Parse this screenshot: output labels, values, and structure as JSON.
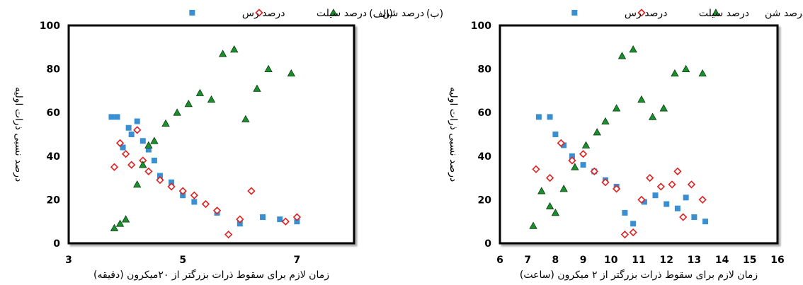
{
  "chart_data": [
    {
      "type": "scatter",
      "panel_label": "(الف)",
      "xlabel": "زمان لازم برای سقوط ذرات بزرگتر از ۲۰میکرون (دقیقه)",
      "ylabel": "درصد نسبی ذرات اولیه",
      "xlim": [
        3,
        8
      ],
      "ylim": [
        0,
        100
      ],
      "x_ticks": [
        "3",
        "5",
        "7"
      ],
      "x_tick_values": [
        3,
        5,
        7
      ],
      "y_ticks": [
        "0",
        "20",
        "40",
        "60",
        "80",
        "100"
      ],
      "y_tick_values": [
        0,
        20,
        40,
        60,
        80,
        100
      ],
      "grid": false,
      "legend_position": "top",
      "series": [
        {
          "name": "درصد رس",
          "color": "#3a8fd1",
          "marker": "square",
          "points": [
            [
              3.75,
              58
            ],
            [
              3.85,
              58
            ],
            [
              3.95,
              44
            ],
            [
              4.05,
              53
            ],
            [
              4.1,
              50
            ],
            [
              4.2,
              56
            ],
            [
              4.3,
              47
            ],
            [
              4.4,
              43
            ],
            [
              4.5,
              38
            ],
            [
              4.6,
              31
            ],
            [
              4.8,
              28
            ],
            [
              5.0,
              22
            ],
            [
              5.2,
              19
            ],
            [
              5.6,
              14
            ],
            [
              6.0,
              9
            ],
            [
              6.4,
              12
            ],
            [
              6.7,
              11
            ],
            [
              7.0,
              10
            ]
          ]
        },
        {
          "name": "درصد سیلت",
          "color": "#e02020",
          "marker": "diamond",
          "points": [
            [
              3.8,
              35
            ],
            [
              3.9,
              46
            ],
            [
              4.0,
              41
            ],
            [
              4.1,
              36
            ],
            [
              4.2,
              52
            ],
            [
              4.3,
              38
            ],
            [
              4.4,
              33
            ],
            [
              4.6,
              29
            ],
            [
              4.8,
              26
            ],
            [
              5.0,
              24
            ],
            [
              5.2,
              22
            ],
            [
              5.4,
              18
            ],
            [
              5.6,
              15
            ],
            [
              5.8,
              4
            ],
            [
              6.0,
              11
            ],
            [
              6.2,
              24
            ],
            [
              6.8,
              10
            ],
            [
              7.0,
              12
            ]
          ]
        },
        {
          "name": "درصد شن",
          "color": "#1b8f2e",
          "marker": "triangle",
          "points": [
            [
              3.8,
              7
            ],
            [
              3.9,
              9
            ],
            [
              4.0,
              11
            ],
            [
              4.2,
              27
            ],
            [
              4.3,
              36
            ],
            [
              4.4,
              45
            ],
            [
              4.5,
              47
            ],
            [
              4.7,
              55
            ],
            [
              4.9,
              60
            ],
            [
              5.1,
              64
            ],
            [
              5.3,
              69
            ],
            [
              5.5,
              66
            ],
            [
              5.7,
              87
            ],
            [
              5.9,
              89
            ],
            [
              6.1,
              57
            ],
            [
              6.3,
              71
            ],
            [
              6.5,
              80
            ],
            [
              6.9,
              78
            ]
          ]
        }
      ]
    },
    {
      "type": "scatter",
      "panel_label": "(ب)",
      "xlabel": "زمان لازم برای سقوط ذرات بزرگتر از ۲ میکرون (ساعت)",
      "ylabel": "درصد نسبی ذرات اولیه",
      "xlim": [
        6,
        16
      ],
      "ylim": [
        0,
        100
      ],
      "x_ticks": [
        "6",
        "7",
        "8",
        "9",
        "10",
        "11",
        "12",
        "13",
        "14",
        "15",
        "16"
      ],
      "x_tick_values": [
        6,
        7,
        8,
        9,
        10,
        11,
        12,
        13,
        14,
        15,
        16
      ],
      "y_ticks": [
        "0",
        "20",
        "40",
        "60",
        "80",
        "100"
      ],
      "y_tick_values": [
        0,
        20,
        40,
        60,
        80,
        100
      ],
      "grid": false,
      "legend_position": "top",
      "series": [
        {
          "name": "درصد رس",
          "color": "#3a8fd1",
          "marker": "square",
          "points": [
            [
              7.4,
              58
            ],
            [
              7.8,
              58
            ],
            [
              8.0,
              50
            ],
            [
              8.3,
              45
            ],
            [
              8.6,
              40
            ],
            [
              9.0,
              36
            ],
            [
              9.4,
              33
            ],
            [
              9.8,
              29
            ],
            [
              10.2,
              26
            ],
            [
              10.5,
              14
            ],
            [
              10.8,
              9
            ],
            [
              11.2,
              19
            ],
            [
              11.6,
              22
            ],
            [
              12.0,
              18
            ],
            [
              12.4,
              16
            ],
            [
              12.7,
              21
            ],
            [
              13.0,
              12
            ],
            [
              13.4,
              10
            ]
          ]
        },
        {
          "name": "درصد سیلت",
          "color": "#e02020",
          "marker": "diamond",
          "points": [
            [
              7.3,
              34
            ],
            [
              7.8,
              30
            ],
            [
              8.2,
              46
            ],
            [
              8.6,
              38
            ],
            [
              9.0,
              41
            ],
            [
              9.4,
              33
            ],
            [
              9.8,
              28
            ],
            [
              10.2,
              25
            ],
            [
              10.5,
              4
            ],
            [
              10.8,
              5
            ],
            [
              11.1,
              20
            ],
            [
              11.4,
              30
            ],
            [
              11.8,
              26
            ],
            [
              12.2,
              27
            ],
            [
              12.4,
              33
            ],
            [
              12.6,
              12
            ],
            [
              12.9,
              27
            ],
            [
              13.3,
              20
            ]
          ]
        },
        {
          "name": "درصد شن",
          "color": "#1b8f2e",
          "marker": "triangle",
          "points": [
            [
              7.2,
              8
            ],
            [
              7.5,
              24
            ],
            [
              7.8,
              17
            ],
            [
              8.0,
              14
            ],
            [
              8.3,
              25
            ],
            [
              8.7,
              35
            ],
            [
              9.1,
              45
            ],
            [
              9.5,
              51
            ],
            [
              9.8,
              56
            ],
            [
              10.2,
              62
            ],
            [
              10.4,
              86
            ],
            [
              10.8,
              89
            ],
            [
              11.1,
              66
            ],
            [
              11.5,
              58
            ],
            [
              11.9,
              62
            ],
            [
              12.3,
              78
            ],
            [
              12.7,
              80
            ],
            [
              13.3,
              78
            ]
          ]
        }
      ]
    }
  ]
}
